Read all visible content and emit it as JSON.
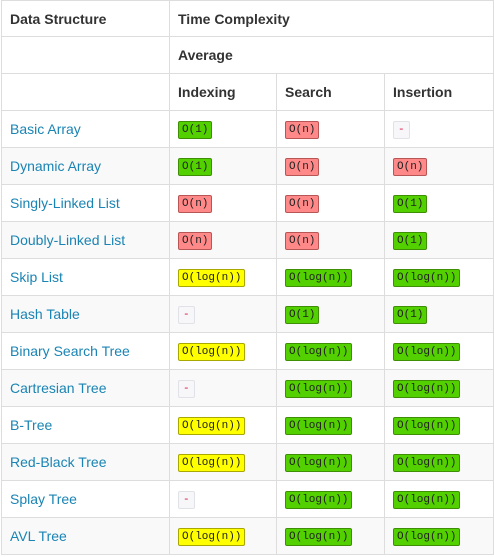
{
  "header": {
    "data_structure": "Data Structure",
    "time_complexity": "Time Complexity",
    "average": "Average",
    "columns": [
      "Indexing",
      "Search",
      "Insertion"
    ]
  },
  "colors": {
    "good": "#53d000",
    "fair": "#ffff00",
    "bad": "#ff8888",
    "link": "#1a84b4"
  },
  "rows": [
    {
      "name": "Basic Array",
      "cells": [
        {
          "text": "O(1)",
          "rating": "good"
        },
        {
          "text": "O(n)",
          "rating": "bad"
        },
        {
          "text": "-",
          "rating": "none"
        }
      ]
    },
    {
      "name": "Dynamic Array",
      "cells": [
        {
          "text": "O(1)",
          "rating": "good"
        },
        {
          "text": "O(n)",
          "rating": "bad"
        },
        {
          "text": "O(n)",
          "rating": "bad"
        }
      ]
    },
    {
      "name": "Singly-Linked List",
      "cells": [
        {
          "text": "O(n)",
          "rating": "bad"
        },
        {
          "text": "O(n)",
          "rating": "bad"
        },
        {
          "text": "O(1)",
          "rating": "good"
        }
      ]
    },
    {
      "name": "Doubly-Linked List",
      "cells": [
        {
          "text": "O(n)",
          "rating": "bad"
        },
        {
          "text": "O(n)",
          "rating": "bad"
        },
        {
          "text": "O(1)",
          "rating": "good"
        }
      ]
    },
    {
      "name": "Skip List",
      "cells": [
        {
          "text": "O(log(n))",
          "rating": "fair"
        },
        {
          "text": "O(log(n))",
          "rating": "good"
        },
        {
          "text": "O(log(n))",
          "rating": "good"
        }
      ]
    },
    {
      "name": "Hash Table",
      "cells": [
        {
          "text": "-",
          "rating": "none"
        },
        {
          "text": "O(1)",
          "rating": "good"
        },
        {
          "text": "O(1)",
          "rating": "good"
        }
      ]
    },
    {
      "name": "Binary Search Tree",
      "cells": [
        {
          "text": "O(log(n))",
          "rating": "fair"
        },
        {
          "text": "O(log(n))",
          "rating": "good"
        },
        {
          "text": "O(log(n))",
          "rating": "good"
        }
      ]
    },
    {
      "name": "Cartresian Tree",
      "cells": [
        {
          "text": "-",
          "rating": "none"
        },
        {
          "text": "O(log(n))",
          "rating": "good"
        },
        {
          "text": "O(log(n))",
          "rating": "good"
        }
      ]
    },
    {
      "name": "B-Tree",
      "cells": [
        {
          "text": "O(log(n))",
          "rating": "fair"
        },
        {
          "text": "O(log(n))",
          "rating": "good"
        },
        {
          "text": "O(log(n))",
          "rating": "good"
        }
      ]
    },
    {
      "name": "Red-Black Tree",
      "cells": [
        {
          "text": "O(log(n))",
          "rating": "fair"
        },
        {
          "text": "O(log(n))",
          "rating": "good"
        },
        {
          "text": "O(log(n))",
          "rating": "good"
        }
      ]
    },
    {
      "name": "Splay Tree",
      "cells": [
        {
          "text": "-",
          "rating": "none"
        },
        {
          "text": "O(log(n))",
          "rating": "good"
        },
        {
          "text": "O(log(n))",
          "rating": "good"
        }
      ]
    },
    {
      "name": "AVL Tree",
      "cells": [
        {
          "text": "O(log(n))",
          "rating": "fair"
        },
        {
          "text": "O(log(n))",
          "rating": "good"
        },
        {
          "text": "O(log(n))",
          "rating": "good"
        }
      ]
    }
  ]
}
